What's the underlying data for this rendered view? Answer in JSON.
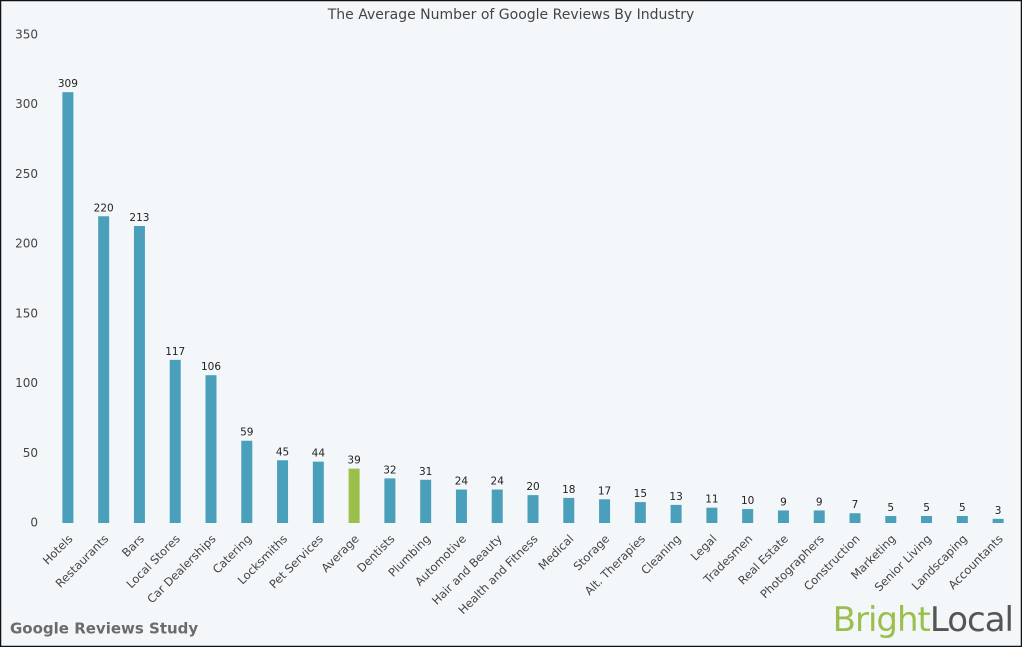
{
  "chart_data": {
    "type": "bar",
    "title": "The Average Number of Google Reviews By Industry",
    "categories": [
      "Hotels",
      "Restaurants",
      "Bars",
      "Local Stores",
      "Car Dealerships",
      "Catering",
      "Locksmiths",
      "Pet Services",
      "Average",
      "Dentists",
      "Plumbing",
      "Automotive",
      "Hair and Beauty",
      "Health and Fitness",
      "Medical",
      "Storage",
      "Alt. Therapies",
      "Cleaning",
      "Legal",
      "Tradesmen",
      "Real Estate",
      "Photographers",
      "Construction",
      "Marketing",
      "Senior Living",
      "Landscaping",
      "Accountants"
    ],
    "values": [
      309,
      220,
      213,
      117,
      106,
      59,
      45,
      44,
      39,
      32,
      31,
      24,
      24,
      20,
      18,
      17,
      15,
      13,
      11,
      10,
      9,
      9,
      7,
      5,
      5,
      5,
      3
    ],
    "colors": [
      "#4a9fba",
      "#4a9fba",
      "#4a9fba",
      "#4a9fba",
      "#4a9fba",
      "#4a9fba",
      "#4a9fba",
      "#4a9fba",
      "#9bbf4b",
      "#4a9fba",
      "#4a9fba",
      "#4a9fba",
      "#4a9fba",
      "#4a9fba",
      "#4a9fba",
      "#4a9fba",
      "#4a9fba",
      "#4a9fba",
      "#4a9fba",
      "#4a9fba",
      "#4a9fba",
      "#4a9fba",
      "#4a9fba",
      "#4a9fba",
      "#4a9fba",
      "#4a9fba",
      "#4a9fba"
    ],
    "ylim": [
      0,
      350
    ],
    "yticks": [
      0,
      50,
      100,
      150,
      200,
      250,
      300,
      350
    ],
    "grid": false
  },
  "footer": {
    "source": "Google Reviews Study",
    "brand_first": "Bright",
    "brand_second": "Local"
  }
}
